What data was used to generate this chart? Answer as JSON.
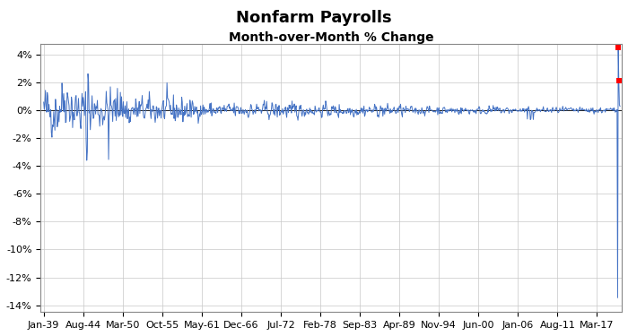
{
  "title": "Nonfarm Payrolls",
  "subtitle": "Month-over-Month % Change",
  "line_color": "#4472C4",
  "marker_color": "#FF0000",
  "background_color": "#FFFFFF",
  "grid_color": "#C8C8C8",
  "ylim": [
    -0.145,
    0.048
  ],
  "yticks": [
    -0.14,
    -0.12,
    -0.1,
    -0.08,
    -0.06,
    -0.04,
    -0.02,
    0.0,
    0.02,
    0.04
  ],
  "xtick_labels": [
    "Jan-39",
    "Aug-44",
    "Mar-50",
    "Oct-55",
    "May-61",
    "Dec-66",
    "Jul-72",
    "Feb-78",
    "Sep-83",
    "Apr-89",
    "Nov-94",
    "Jun-00",
    "Jan-06",
    "Aug-11",
    "Mar-17"
  ],
  "xtick_positions": [
    0,
    67,
    134,
    201,
    268,
    335,
    402,
    469,
    536,
    603,
    670,
    737,
    804,
    871,
    938
  ],
  "n_months": 978,
  "covid_idx": 973,
  "covid_drop": -0.1347,
  "covid_recovery": 0.0452,
  "covid_partial": 0.0213,
  "title_fontsize": 13,
  "subtitle_fontsize": 10,
  "title_color": "#000000",
  "tick_fontsize": 8
}
